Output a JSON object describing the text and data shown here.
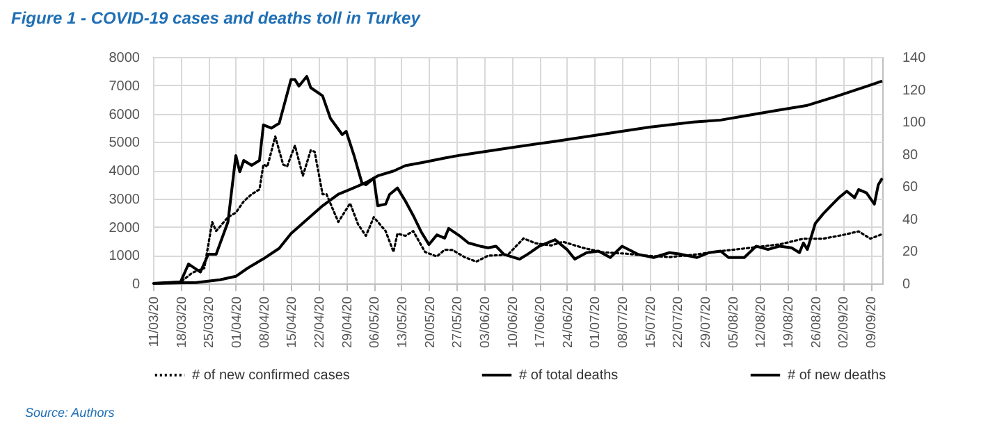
{
  "chart_data": {
    "type": "line",
    "title": "Figure 1 - COVID-19 cases and deaths toll in Turkey",
    "annotations": [
      "Source: Authors"
    ],
    "xlim": [
      "--03-11",
      "--09-12"
    ],
    "xticks": [
      {
        "value": "--03-11",
        "label": "11/03/20"
      },
      {
        "value": "--03-18",
        "label": "18/03/20"
      },
      {
        "value": "--03-25",
        "label": "25/03/20"
      },
      {
        "value": "--04-01",
        "label": "01/04/20"
      },
      {
        "value": "--04-08",
        "label": "08/04/20"
      },
      {
        "value": "--04-15",
        "label": "15/04/20"
      },
      {
        "value": "--04-22",
        "label": "22/04/20"
      },
      {
        "value": "--04-29",
        "label": "29/04/20"
      },
      {
        "value": "--05-06",
        "label": "06/05/20"
      },
      {
        "value": "--05-13",
        "label": "13/05/20"
      },
      {
        "value": "--05-20",
        "label": "20/05/20"
      },
      {
        "value": "--05-27",
        "label": "27/05/20"
      },
      {
        "value": "--06-03",
        "label": "03/06/20"
      },
      {
        "value": "--06-10",
        "label": "10/06/20"
      },
      {
        "value": "--06-17",
        "label": "17/06/20"
      },
      {
        "value": "--06-24",
        "label": "24/06/20"
      },
      {
        "value": "--07-01",
        "label": "01/07/20"
      },
      {
        "value": "--07-08",
        "label": "08/07/20"
      },
      {
        "value": "--07-15",
        "label": "15/07/20"
      },
      {
        "value": "--07-22",
        "label": "22/07/20"
      },
      {
        "value": "--07-29",
        "label": "29/07/20"
      },
      {
        "value": "--08-05",
        "label": "05/08/20"
      },
      {
        "value": "--08-12",
        "label": "12/08/20"
      },
      {
        "value": "--08-19",
        "label": "19/08/20"
      },
      {
        "value": "--08-26",
        "label": "26/08/20"
      },
      {
        "value": "--09-02",
        "label": "02/09/20"
      },
      {
        "value": "--09-09",
        "label": "09/09/20"
      }
    ],
    "ylim": [
      0,
      8000
    ],
    "yticks": [
      0,
      1000,
      2000,
      3000,
      4000,
      5000,
      6000,
      7000,
      8000
    ],
    "y2lim": [
      0,
      140
    ],
    "y2ticks": [
      0,
      20,
      40,
      60,
      80,
      100,
      120,
      140
    ],
    "grid": true,
    "legend": "bottom",
    "marker": "none",
    "series": [
      {
        "name": "# of new confirmed cases",
        "color": "#000000",
        "line_style": "dotted",
        "x": [
          "--03-11",
          "--03-18",
          "--03-21",
          "--03-24",
          "--03-26",
          "--03-27",
          "--03-28",
          "--03-30",
          "--04-01",
          "--04-03",
          "--04-05",
          "--04-07",
          "--04-08",
          "--04-09",
          "--04-11",
          "--04-13",
          "--04-14",
          "--04-16",
          "--04-18",
          "--04-20",
          "--04-21",
          "--04-23",
          "--04-24",
          "--04-27",
          "--04-30",
          "--05-02",
          "--05-04",
          "--05-06",
          "--05-09",
          "--05-11",
          "--05-12",
          "--05-14",
          "--05-16",
          "--05-19",
          "--05-22",
          "--05-24",
          "--05-26",
          "--05-29",
          "--06-01",
          "--06-04",
          "--06-09",
          "--06-13",
          "--06-16",
          "--06-20",
          "--06-23",
          "--06-28",
          "--07-03",
          "--07-09",
          "--07-14",
          "--07-20",
          "--07-26",
          "--08-02",
          "--08-09",
          "--08-17",
          "--08-23",
          "--08-28",
          "--09-02",
          "--09-06",
          "--09-09",
          "--09-12"
        ],
        "values": [
          0,
          50,
          380,
          540,
          2170,
          1850,
          2010,
          2340,
          2500,
          2900,
          3150,
          3320,
          4200,
          4130,
          5190,
          4200,
          4130,
          4870,
          3800,
          4700,
          4650,
          3150,
          3150,
          2170,
          2830,
          2090,
          1680,
          2340,
          1850,
          1110,
          1760,
          1680,
          1850,
          1110,
          950,
          1190,
          1180,
          930,
          770,
          980,
          1010,
          1590,
          1420,
          1340,
          1470,
          1260,
          1100,
          1050,
          980,
          930,
          1010,
          1140,
          1250,
          1380,
          1580,
          1580,
          1710,
          1840,
          1580,
          1740
        ]
      },
      {
        "name": "# of total deaths",
        "color": "#000000",
        "line_style": "solid",
        "x": [
          "--03-11",
          "--03-22",
          "--03-28",
          "--04-01",
          "--04-04",
          "--04-08",
          "--04-12",
          "--04-15",
          "--04-19",
          "--04-23",
          "--04-27",
          "--04-30",
          "--05-04",
          "--05-07",
          "--05-11",
          "--05-14",
          "--05-19",
          "--05-24",
          "--05-28",
          "--06-09",
          "--06-21",
          "--07-03",
          "--07-15",
          "--07-26",
          "--08-02",
          "--08-09",
          "--08-17",
          "--08-24",
          "--08-31",
          "--09-08",
          "--09-12"
        ],
        "values": [
          0,
          30,
          130,
          250,
          540,
          870,
          1240,
          1760,
          2250,
          2740,
          3150,
          3320,
          3560,
          3800,
          3970,
          4160,
          4290,
          4430,
          4530,
          4780,
          5020,
          5270,
          5520,
          5700,
          5770,
          5940,
          6130,
          6290,
          6590,
          6960,
          7150
        ]
      },
      {
        "name": "# of new deaths",
        "color": "#000000",
        "line_style": "solid",
        "axis": "y2",
        "x": [
          "--03-11",
          "--03-18",
          "--03-20",
          "--03-23",
          "--03-25",
          "--03-27",
          "--03-30",
          "--04-01",
          "--04-02",
          "--04-03",
          "--04-05",
          "--04-07",
          "--04-08",
          "--04-10",
          "--04-12",
          "--04-15",
          "--04-16",
          "--04-17",
          "--04-19",
          "--04-20",
          "--04-23",
          "--04-25",
          "--04-28",
          "--04-29",
          "--05-01",
          "--05-03",
          "--05-04",
          "--05-06",
          "--05-07",
          "--05-09",
          "--05-10",
          "--05-12",
          "--05-14",
          "--05-16",
          "--05-18",
          "--05-20",
          "--05-22",
          "--05-24",
          "--05-25",
          "--05-28",
          "--05-30",
          "--06-02",
          "--06-04",
          "--06-06",
          "--06-08",
          "--06-12",
          "--06-14",
          "--06-17",
          "--06-21",
          "--06-24",
          "--06-26",
          "--06-29",
          "--07-02",
          "--07-05",
          "--07-08",
          "--07-12",
          "--07-16",
          "--07-20",
          "--07-23",
          "--07-27",
          "--07-30",
          "--08-02",
          "--08-04",
          "--08-08",
          "--08-11",
          "--08-14",
          "--08-17",
          "--08-20",
          "--08-22",
          "--08-23",
          "--08-24",
          "--08-26",
          "--08-28",
          "--08-30",
          "--09-01",
          "--09-03",
          "--09-05",
          "--09-06",
          "--09-08",
          "--09-10",
          "--09-11",
          "--09-12"
        ],
        "values": [
          0,
          1,
          12,
          7,
          18,
          18,
          38,
          79,
          69,
          76,
          73,
          76,
          98,
          96,
          99,
          126,
          126,
          122,
          128,
          121,
          116,
          102,
          92,
          94,
          79,
          62,
          61,
          65,
          48,
          49,
          55,
          59,
          51,
          42,
          32,
          24,
          30,
          28,
          34,
          29,
          25,
          23,
          22,
          23,
          18,
          15,
          18,
          23,
          27,
          21,
          15,
          19,
          20,
          16,
          23,
          18,
          16,
          19,
          18,
          16,
          19,
          20,
          16,
          16,
          23,
          21,
          23,
          22,
          19,
          25,
          21,
          37,
          43,
          48,
          53,
          57,
          53,
          58,
          56,
          49,
          61,
          65
        ]
      }
    ]
  }
}
